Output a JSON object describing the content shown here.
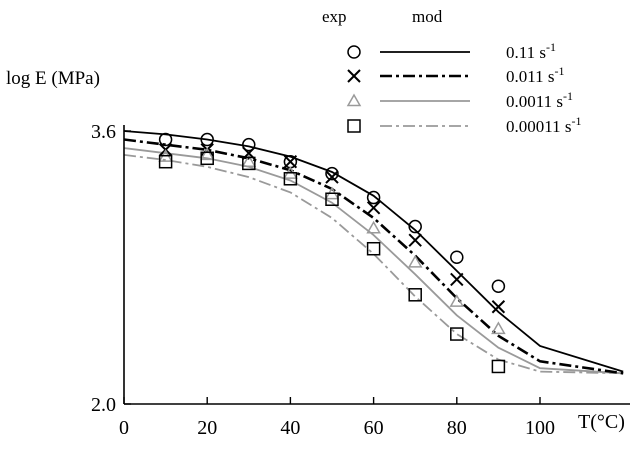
{
  "chart_data": {
    "type": "line",
    "ylabel": "log E (MPa)",
    "xlabel": "T(°C)",
    "xlim": [
      0,
      100
    ],
    "ylim": [
      2.0,
      3.6
    ],
    "x_ticks": [
      "0",
      "20",
      "40",
      "60",
      "80",
      "100"
    ],
    "y_ticks": [
      "2.0",
      "3.6"
    ],
    "grid": false,
    "legend_position": "top-right",
    "legend_headers": {
      "exp": "exp",
      "mod": "mod"
    },
    "series": [
      {
        "name": "0.11 s-1",
        "label_base": "0.11 s",
        "label_sup": "-1",
        "marker": "circle",
        "line_style": "solid",
        "color": "#000000",
        "exp": {
          "x": [
            10,
            20,
            30,
            40,
            50,
            60,
            70,
            80,
            90
          ],
          "y": [
            3.55,
            3.55,
            3.52,
            3.42,
            3.35,
            3.21,
            3.04,
            2.86,
            2.69
          ]
        },
        "mod": {
          "x": [
            0,
            10,
            20,
            30,
            40,
            50,
            60,
            70,
            80,
            90,
            100,
            120
          ],
          "y": [
            3.6,
            3.58,
            3.55,
            3.51,
            3.45,
            3.36,
            3.22,
            3.02,
            2.78,
            2.54,
            2.34,
            2.19
          ]
        }
      },
      {
        "name": "0.011 s-1",
        "label_base": "0.011 s",
        "label_sup": "-1",
        "marker": "x",
        "line_style": "dashdot",
        "color": "#000000",
        "exp": {
          "x": [
            10,
            20,
            30,
            40,
            50,
            60,
            70,
            80,
            90
          ],
          "y": [
            3.49,
            3.49,
            3.47,
            3.42,
            3.33,
            3.15,
            2.96,
            2.73,
            2.57
          ]
        },
        "mod": {
          "x": [
            0,
            10,
            20,
            30,
            40,
            50,
            60,
            70,
            80,
            90,
            100,
            120
          ],
          "y": [
            3.55,
            3.52,
            3.49,
            3.44,
            3.37,
            3.26,
            3.09,
            2.87,
            2.62,
            2.4,
            2.25,
            2.18
          ]
        }
      },
      {
        "name": "0.0011 s-1",
        "label_base": "0.0011 s",
        "label_sup": "-1",
        "marker": "triangle",
        "line_style": "solid",
        "color": "#9a9a9a",
        "exp": {
          "x": [
            10,
            20,
            30,
            40,
            50,
            60,
            70,
            80,
            90
          ],
          "y": [
            3.45,
            3.46,
            3.42,
            3.35,
            3.23,
            3.03,
            2.83,
            2.6,
            2.44
          ]
        },
        "mod": {
          "x": [
            0,
            10,
            20,
            30,
            40,
            50,
            60,
            70,
            80,
            90,
            100,
            120
          ],
          "y": [
            3.5,
            3.47,
            3.44,
            3.39,
            3.31,
            3.18,
            2.99,
            2.76,
            2.52,
            2.33,
            2.21,
            2.18
          ]
        }
      },
      {
        "name": "0.00011 s-1",
        "label_base": "0.00011 s",
        "label_sup": "-1",
        "marker": "square",
        "line_style": "dashdot",
        "color": "#9a9a9a",
        "exp": {
          "x": [
            10,
            20,
            30,
            40,
            50,
            60,
            70,
            80,
            90
          ],
          "y": [
            3.42,
            3.44,
            3.41,
            3.32,
            3.2,
            2.91,
            2.64,
            2.41,
            2.22
          ]
        },
        "mod": {
          "x": [
            0,
            10,
            20,
            30,
            40,
            50,
            60,
            70,
            80,
            90,
            100,
            120
          ],
          "y": [
            3.46,
            3.43,
            3.39,
            3.33,
            3.24,
            3.09,
            2.88,
            2.63,
            2.41,
            2.26,
            2.19,
            2.18
          ]
        }
      }
    ]
  }
}
